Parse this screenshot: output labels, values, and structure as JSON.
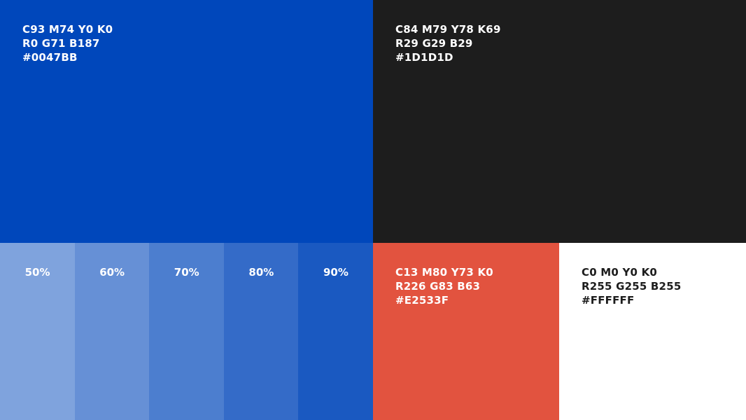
{
  "swatches": [
    {
      "lines": [
        "C93 M74 Y0 K0",
        "R0 G71 B187",
        "#0047BB"
      ],
      "color": "#0047bb",
      "text_color": "#ffffff"
    },
    {
      "lines": [
        "C84 M79 Y78 K69",
        "R29 G29 B29",
        "#1D1D1D"
      ],
      "color": "#1d1d1d",
      "text_color": "#ffffff"
    },
    {
      "lines": [
        "C13 M80 Y73 K0",
        "R226 G83 B63",
        "#E2533F"
      ],
      "color": "#e2533f",
      "text_color": "#ffffff"
    },
    {
      "lines": [
        "C0 M0 Y0 K0",
        "R255 G255 B255",
        "#FFFFFF"
      ],
      "color": "#ffffff",
      "text_color": "#1d1d1d"
    }
  ],
  "tints": [
    {
      "label": "50%",
      "color": "#7fa3dd"
    },
    {
      "label": "60%",
      "color": "#6690d6"
    },
    {
      "label": "70%",
      "color": "#4c7ecf"
    },
    {
      "label": "80%",
      "color": "#346bc8"
    },
    {
      "label": "90%",
      "color": "#1a59c1"
    }
  ]
}
